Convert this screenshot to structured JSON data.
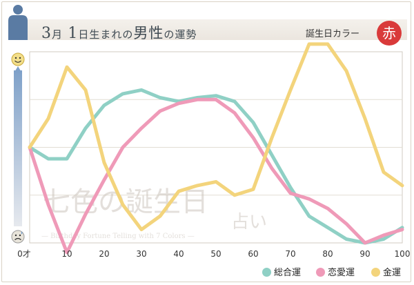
{
  "header": {
    "month": "3",
    "month_unit": "月",
    "day": "1",
    "day_unit": "日生まれの",
    "gender": "男性",
    "suffix": "の運勢",
    "birth_color_label": "誕生日カラー",
    "birth_color": "赤",
    "birth_color_hex": "#d93a3a"
  },
  "watermark": {
    "title": "七色の誕生日",
    "sub": "占い",
    "english": "— Birthday Fortune Telling with 7 Colors —"
  },
  "chart_data": {
    "type": "line",
    "x": [
      0,
      5,
      10,
      15,
      20,
      25,
      30,
      35,
      40,
      45,
      50,
      55,
      60,
      65,
      70,
      75,
      80,
      85,
      90,
      95,
      100
    ],
    "x_ticks": [
      0,
      10,
      20,
      30,
      40,
      50,
      60,
      70,
      80,
      90,
      100
    ],
    "x_tick_labels": [
      "0才",
      "10",
      "20",
      "30",
      "40",
      "50",
      "60",
      "70",
      "80",
      "90",
      "100"
    ],
    "xlim": [
      0,
      100
    ],
    "ylim": [
      0,
      100
    ],
    "y_top_icon": "smile-face-icon",
    "y_bottom_icon": "sad-face-icon",
    "grid": true,
    "legend_position": "bottom-right",
    "series": [
      {
        "name": "総合運",
        "color": "#8fd0c5",
        "values": [
          50,
          44,
          44,
          60,
          72,
          78,
          80,
          76,
          74,
          76,
          77,
          74,
          63,
          46,
          29,
          14,
          8,
          2,
          0,
          2,
          8
        ]
      },
      {
        "name": "恋愛運",
        "color": "#ef9ab8",
        "values": [
          50,
          20,
          -5,
          15,
          33,
          50,
          60,
          69,
          73,
          75,
          75,
          68,
          55,
          39,
          26,
          23,
          18,
          10,
          0,
          4,
          7
        ]
      },
      {
        "name": "金運",
        "color": "#f3d47c",
        "values": [
          50,
          65,
          92,
          80,
          42,
          20,
          7,
          14,
          27,
          30,
          32,
          25,
          28,
          55,
          80,
          104,
          104,
          90,
          65,
          37,
          30
        ]
      }
    ]
  }
}
